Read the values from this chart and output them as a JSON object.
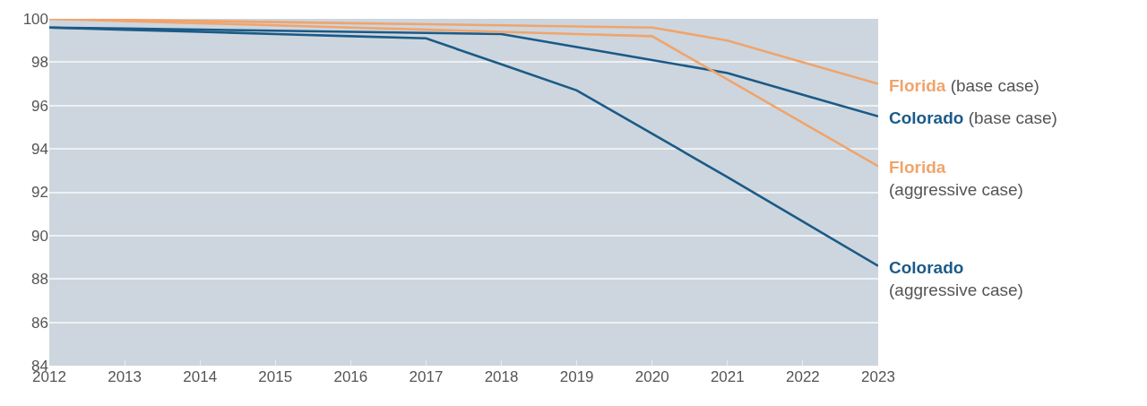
{
  "chart_data": {
    "type": "line",
    "x": [
      2012,
      2013,
      2014,
      2015,
      2016,
      2017,
      2018,
      2019,
      2020,
      2021,
      2022,
      2023
    ],
    "series": [
      {
        "name": "Florida (base case)",
        "color": "#f0a46c",
        "values": [
          100,
          99.95,
          99.9,
          99.85,
          99.8,
          99.75,
          99.7,
          99.65,
          99.6,
          99.0,
          98.0,
          97.0
        ]
      },
      {
        "name": "Colorado (base case)",
        "color": "#1b5a87",
        "values": [
          99.6,
          99.55,
          99.5,
          99.45,
          99.4,
          99.35,
          99.3,
          98.7,
          98.1,
          97.5,
          96.5,
          95.5
        ]
      },
      {
        "name": "Florida (aggressive case)",
        "color": "#f0a46c",
        "values": [
          100,
          99.9,
          99.8,
          99.7,
          99.6,
          99.5,
          99.4,
          99.3,
          99.2,
          97.2,
          95.2,
          93.2
        ]
      },
      {
        "name": "Colorado (aggressive case)",
        "color": "#1b5a87",
        "values": [
          99.6,
          99.5,
          99.4,
          99.3,
          99.2,
          99.1,
          97.9,
          96.7,
          94.7,
          92.7,
          90.65,
          88.6
        ]
      }
    ],
    "xlim": [
      2012,
      2023
    ],
    "xticks": [
      2012,
      2013,
      2014,
      2015,
      2016,
      2017,
      2018,
      2019,
      2020,
      2021,
      2022,
      2023
    ],
    "ylim": [
      84,
      100
    ],
    "yticks": [
      84,
      86,
      88,
      90,
      92,
      94,
      96,
      98,
      100
    ],
    "grid": "y",
    "legend": false,
    "marker": "none",
    "line_style": "solid"
  }
}
